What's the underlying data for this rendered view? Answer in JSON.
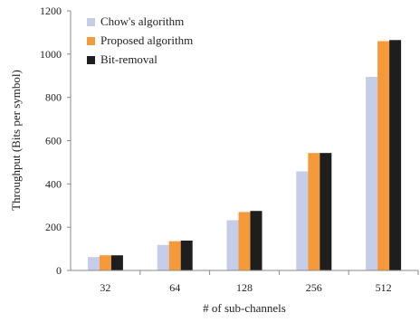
{
  "chart_data": {
    "type": "bar",
    "title": "",
    "xlabel": "# of sub-channels",
    "ylabel": "Throughput (Bits per symbol)",
    "categories": [
      "32",
      "64",
      "128",
      "256",
      "512"
    ],
    "ylim": [
      0,
      1200
    ],
    "yticks": [
      0,
      200,
      400,
      600,
      800,
      1000,
      1200
    ],
    "grid": false,
    "legend_position": "top-left",
    "series": [
      {
        "name": "Chow's algorithm",
        "color": "#c6cde8",
        "values": [
          62,
          118,
          232,
          458,
          895
        ]
      },
      {
        "name": "Proposed algorithm",
        "color": "#f59a3a",
        "values": [
          70,
          135,
          270,
          543,
          1060
        ]
      },
      {
        "name": "Bit-removal",
        "color": "#1e1e1e",
        "values": [
          70,
          138,
          275,
          543,
          1065
        ]
      }
    ]
  }
}
